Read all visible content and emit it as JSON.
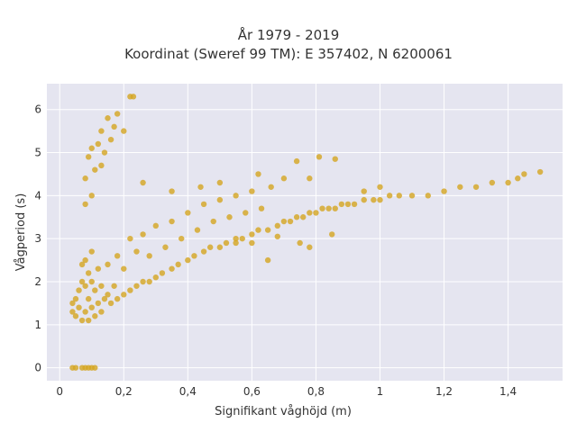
{
  "chart_data": {
    "type": "scatter",
    "title": [
      "År 1979 - 2019",
      "Koordinat (Sweref 99 TM): E 357402, N 6200061"
    ],
    "xlabel": "Signifikant våghöjd (m)",
    "ylabel": "Vågperiod (s)",
    "xlim": [
      -0.04,
      1.57
    ],
    "ylim": [
      -0.3,
      6.6
    ],
    "x_ticks": [
      0,
      0.2,
      0.4,
      0.6,
      0.8,
      1.0,
      1.2,
      1.4
    ],
    "x_tick_labels": [
      "0",
      "0,2",
      "0,4",
      "0,6",
      "0,8",
      "1",
      "1,2",
      "1,4"
    ],
    "y_ticks": [
      0,
      1,
      2,
      3,
      4,
      5,
      6
    ],
    "y_tick_labels": [
      "0",
      "1",
      "2",
      "3",
      "4",
      "5",
      "6"
    ],
    "grid": true,
    "marker_color": "#D4A520",
    "background": "#E5E5F0",
    "series": [
      {
        "points": [
          [
            0.04,
            0.0
          ],
          [
            0.05,
            0.0
          ],
          [
            0.07,
            0.0
          ],
          [
            0.08,
            0.0
          ],
          [
            0.09,
            0.0
          ],
          [
            0.1,
            0.0
          ],
          [
            0.11,
            0.0
          ],
          [
            0.04,
            1.3
          ],
          [
            0.04,
            1.5
          ],
          [
            0.05,
            1.2
          ],
          [
            0.05,
            1.6
          ],
          [
            0.06,
            1.4
          ],
          [
            0.06,
            1.8
          ],
          [
            0.07,
            1.1
          ],
          [
            0.07,
            2.0
          ],
          [
            0.07,
            2.4
          ],
          [
            0.08,
            1.3
          ],
          [
            0.08,
            1.9
          ],
          [
            0.08,
            2.5
          ],
          [
            0.09,
            1.1
          ],
          [
            0.09,
            1.6
          ],
          [
            0.09,
            2.2
          ],
          [
            0.1,
            1.4
          ],
          [
            0.1,
            2.0
          ],
          [
            0.1,
            2.7
          ],
          [
            0.11,
            1.2
          ],
          [
            0.11,
            1.8
          ],
          [
            0.12,
            1.5
          ],
          [
            0.12,
            2.3
          ],
          [
            0.13,
            1.3
          ],
          [
            0.13,
            1.9
          ],
          [
            0.14,
            1.6
          ],
          [
            0.15,
            1.7
          ],
          [
            0.15,
            2.4
          ],
          [
            0.16,
            1.5
          ],
          [
            0.17,
            1.9
          ],
          [
            0.18,
            1.6
          ],
          [
            0.18,
            2.6
          ],
          [
            0.2,
            1.7
          ],
          [
            0.2,
            2.3
          ],
          [
            0.22,
            1.8
          ],
          [
            0.22,
            3.0
          ],
          [
            0.24,
            1.9
          ],
          [
            0.24,
            2.7
          ],
          [
            0.26,
            2.0
          ],
          [
            0.26,
            3.1
          ],
          [
            0.28,
            2.0
          ],
          [
            0.28,
            2.6
          ],
          [
            0.3,
            2.1
          ],
          [
            0.3,
            3.3
          ],
          [
            0.32,
            2.2
          ],
          [
            0.33,
            2.8
          ],
          [
            0.35,
            2.3
          ],
          [
            0.35,
            3.4
          ],
          [
            0.37,
            2.4
          ],
          [
            0.38,
            3.0
          ],
          [
            0.4,
            2.5
          ],
          [
            0.4,
            3.6
          ],
          [
            0.42,
            2.6
          ],
          [
            0.43,
            3.2
          ],
          [
            0.45,
            2.7
          ],
          [
            0.45,
            3.8
          ],
          [
            0.47,
            2.8
          ],
          [
            0.48,
            3.4
          ],
          [
            0.5,
            2.8
          ],
          [
            0.5,
            3.9
          ],
          [
            0.52,
            2.9
          ],
          [
            0.53,
            3.5
          ],
          [
            0.55,
            3.0
          ],
          [
            0.55,
            4.0
          ],
          [
            0.57,
            3.0
          ],
          [
            0.58,
            3.6
          ],
          [
            0.6,
            3.1
          ],
          [
            0.6,
            4.1
          ],
          [
            0.62,
            3.2
          ],
          [
            0.63,
            3.7
          ],
          [
            0.65,
            3.2
          ],
          [
            0.66,
            4.2
          ],
          [
            0.68,
            3.3
          ],
          [
            0.7,
            3.4
          ],
          [
            0.72,
            3.4
          ],
          [
            0.74,
            3.5
          ],
          [
            0.76,
            3.5
          ],
          [
            0.78,
            3.6
          ],
          [
            0.8,
            3.6
          ],
          [
            0.82,
            3.7
          ],
          [
            0.84,
            3.7
          ],
          [
            0.86,
            3.7
          ],
          [
            0.88,
            3.8
          ],
          [
            0.9,
            3.8
          ],
          [
            0.92,
            3.8
          ],
          [
            0.95,
            3.9
          ],
          [
            0.98,
            3.9
          ],
          [
            1.0,
            3.9
          ],
          [
            1.03,
            4.0
          ],
          [
            1.06,
            4.0
          ],
          [
            1.1,
            4.0
          ],
          [
            1.15,
            4.0
          ],
          [
            1.2,
            4.1
          ],
          [
            1.25,
            4.2
          ],
          [
            1.3,
            4.2
          ],
          [
            1.35,
            4.3
          ],
          [
            1.4,
            4.3
          ],
          [
            1.43,
            4.4
          ],
          [
            1.45,
            4.5
          ],
          [
            1.5,
            4.55
          ],
          [
            0.08,
            3.8
          ],
          [
            0.08,
            4.4
          ],
          [
            0.09,
            4.9
          ],
          [
            0.1,
            4.0
          ],
          [
            0.1,
            5.1
          ],
          [
            0.11,
            4.6
          ],
          [
            0.12,
            5.2
          ],
          [
            0.13,
            4.7
          ],
          [
            0.13,
            5.5
          ],
          [
            0.14,
            5.0
          ],
          [
            0.15,
            5.8
          ],
          [
            0.16,
            5.3
          ],
          [
            0.17,
            5.6
          ],
          [
            0.18,
            5.9
          ],
          [
            0.2,
            5.5
          ],
          [
            0.22,
            6.3
          ],
          [
            0.23,
            6.3
          ],
          [
            0.26,
            4.3
          ],
          [
            0.35,
            4.1
          ],
          [
            0.44,
            4.2
          ],
          [
            0.5,
            4.3
          ],
          [
            0.62,
            4.5
          ],
          [
            0.7,
            4.4
          ],
          [
            0.74,
            4.8
          ],
          [
            0.78,
            4.4
          ],
          [
            0.81,
            4.9
          ],
          [
            0.86,
            4.85
          ],
          [
            0.95,
            4.1
          ],
          [
            1.0,
            4.2
          ],
          [
            0.55,
            2.9
          ],
          [
            0.65,
            2.5
          ],
          [
            0.75,
            2.9
          ],
          [
            0.78,
            2.8
          ],
          [
            0.85,
            3.1
          ],
          [
            0.68,
            3.05
          ],
          [
            0.6,
            2.9
          ]
        ]
      }
    ]
  }
}
